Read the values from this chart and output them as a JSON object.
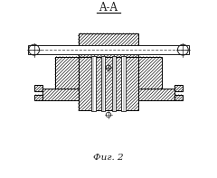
{
  "bg_color": "#ffffff",
  "line_color": "#1a1a1a",
  "title": "A-A",
  "caption": "Фиг. 2",
  "fig_width": 2.4,
  "fig_height": 1.97,
  "dpi": 100,
  "xlim": [
    0,
    10
  ],
  "ylim": [
    0,
    10
  ]
}
